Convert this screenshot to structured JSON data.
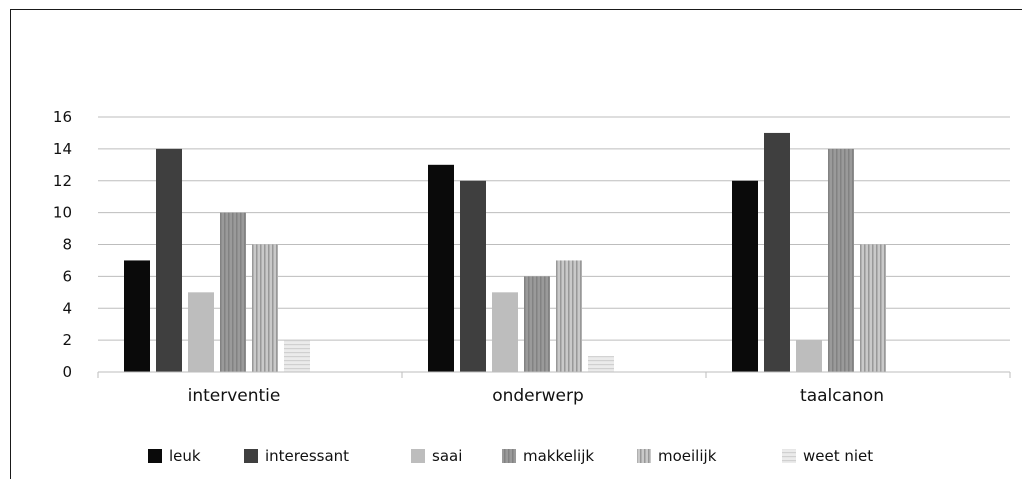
{
  "chart_data": {
    "type": "bar",
    "categories": [
      "interventie",
      "onderwerp",
      "taalcanon"
    ],
    "series": [
      {
        "name": "leuk",
        "values": [
          7,
          13,
          12
        ],
        "color": "#0a0a0a",
        "pattern": "solid"
      },
      {
        "name": "interessant",
        "values": [
          14,
          12,
          15
        ],
        "color": "#3f3f3f",
        "pattern": "solid"
      },
      {
        "name": "saai",
        "values": [
          5,
          5,
          2
        ],
        "color": "#bdbdbd",
        "pattern": "solid"
      },
      {
        "name": "makkelijk",
        "values": [
          10,
          6,
          14
        ],
        "color": "#9a9a9a",
        "pattern": "vertical-stripes"
      },
      {
        "name": "moeilijk",
        "values": [
          8,
          7,
          8
        ],
        "color": "#c9c9c9",
        "pattern": "vertical-stripes"
      },
      {
        "name": "weet niet",
        "values": [
          2,
          1,
          0
        ],
        "color": "#ebebeb",
        "pattern": "horizontal-stripes"
      }
    ],
    "yticks": [
      "0",
      "2",
      "4",
      "6",
      "8",
      "10",
      "12",
      "14",
      "16"
    ],
    "ylim": [
      0,
      16
    ],
    "grid": true,
    "legend_position": "bottom"
  }
}
